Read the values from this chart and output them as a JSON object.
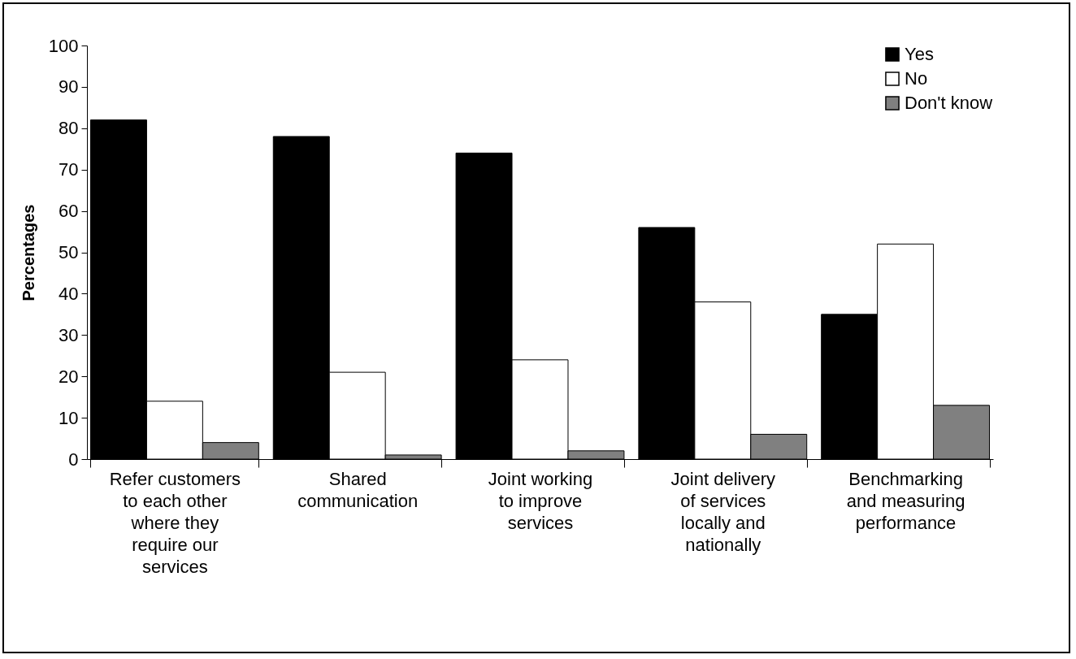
{
  "chart_data": {
    "type": "bar",
    "ylabel": "Percentages",
    "categories": [
      "Refer customers to each other where they require our services",
      "Shared communication",
      "Joint working to improve services",
      "Joint delivery of services locally and nationally",
      "Benchmarking and measuring performance"
    ],
    "series": [
      {
        "name": "Yes",
        "color": "#000000",
        "values": [
          82,
          78,
          74,
          56,
          35
        ]
      },
      {
        "name": "No",
        "color": "#ffffff",
        "values": [
          14,
          21,
          24,
          38,
          52
        ]
      },
      {
        "name": "Don't know",
        "color": "#808080",
        "values": [
          4,
          1,
          2,
          6,
          13
        ]
      }
    ],
    "ylim": [
      0,
      100
    ],
    "yticks": [
      0,
      10,
      20,
      30,
      40,
      50,
      60,
      70,
      80,
      90,
      100
    ],
    "grid": false,
    "legend": "top right"
  }
}
